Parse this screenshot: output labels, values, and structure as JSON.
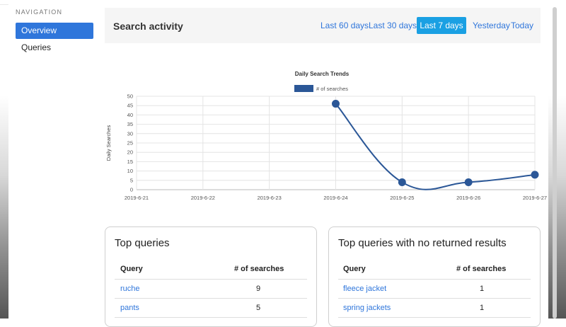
{
  "sidebar": {
    "heading": "NAVIGATION",
    "items": [
      {
        "label": "Overview",
        "active": true
      },
      {
        "label": "Queries",
        "active": false
      }
    ]
  },
  "header": {
    "title": "Search activity",
    "ranges": [
      "Last 60 days",
      "Last 30 days",
      "Last 7 days",
      "Yesterday",
      "Today"
    ],
    "selected_range": "Last 7 days"
  },
  "chart_data": {
    "type": "line",
    "title": "Daily Search Trends",
    "ylabel": "Daily Searches",
    "xlabel": "",
    "categories": [
      "2019-6-21",
      "2019-6-22",
      "2019-6-23",
      "2019-6-24",
      "2019-6-25",
      "2019-6-26",
      "2019-6-27"
    ],
    "series": [
      {
        "name": "# of searches",
        "values": [
          null,
          null,
          null,
          46,
          4,
          4,
          8
        ]
      }
    ],
    "ylim": [
      0,
      50
    ],
    "yticks": [
      0,
      5,
      10,
      15,
      20,
      25,
      30,
      35,
      40,
      45,
      50
    ],
    "grid": true,
    "legend": "top-center",
    "color": "#2b5797"
  },
  "top_queries": {
    "title": "Top queries",
    "columns": [
      "Query",
      "# of searches"
    ],
    "rows": [
      {
        "query": "ruche",
        "count": "9"
      },
      {
        "query": "pants",
        "count": "5"
      }
    ]
  },
  "no_results": {
    "title": "Top queries with no returned results",
    "columns": [
      "Query",
      "# of searches"
    ],
    "rows": [
      {
        "query": "fleece jacket",
        "count": "1"
      },
      {
        "query": "spring jackets",
        "count": "1"
      }
    ]
  }
}
